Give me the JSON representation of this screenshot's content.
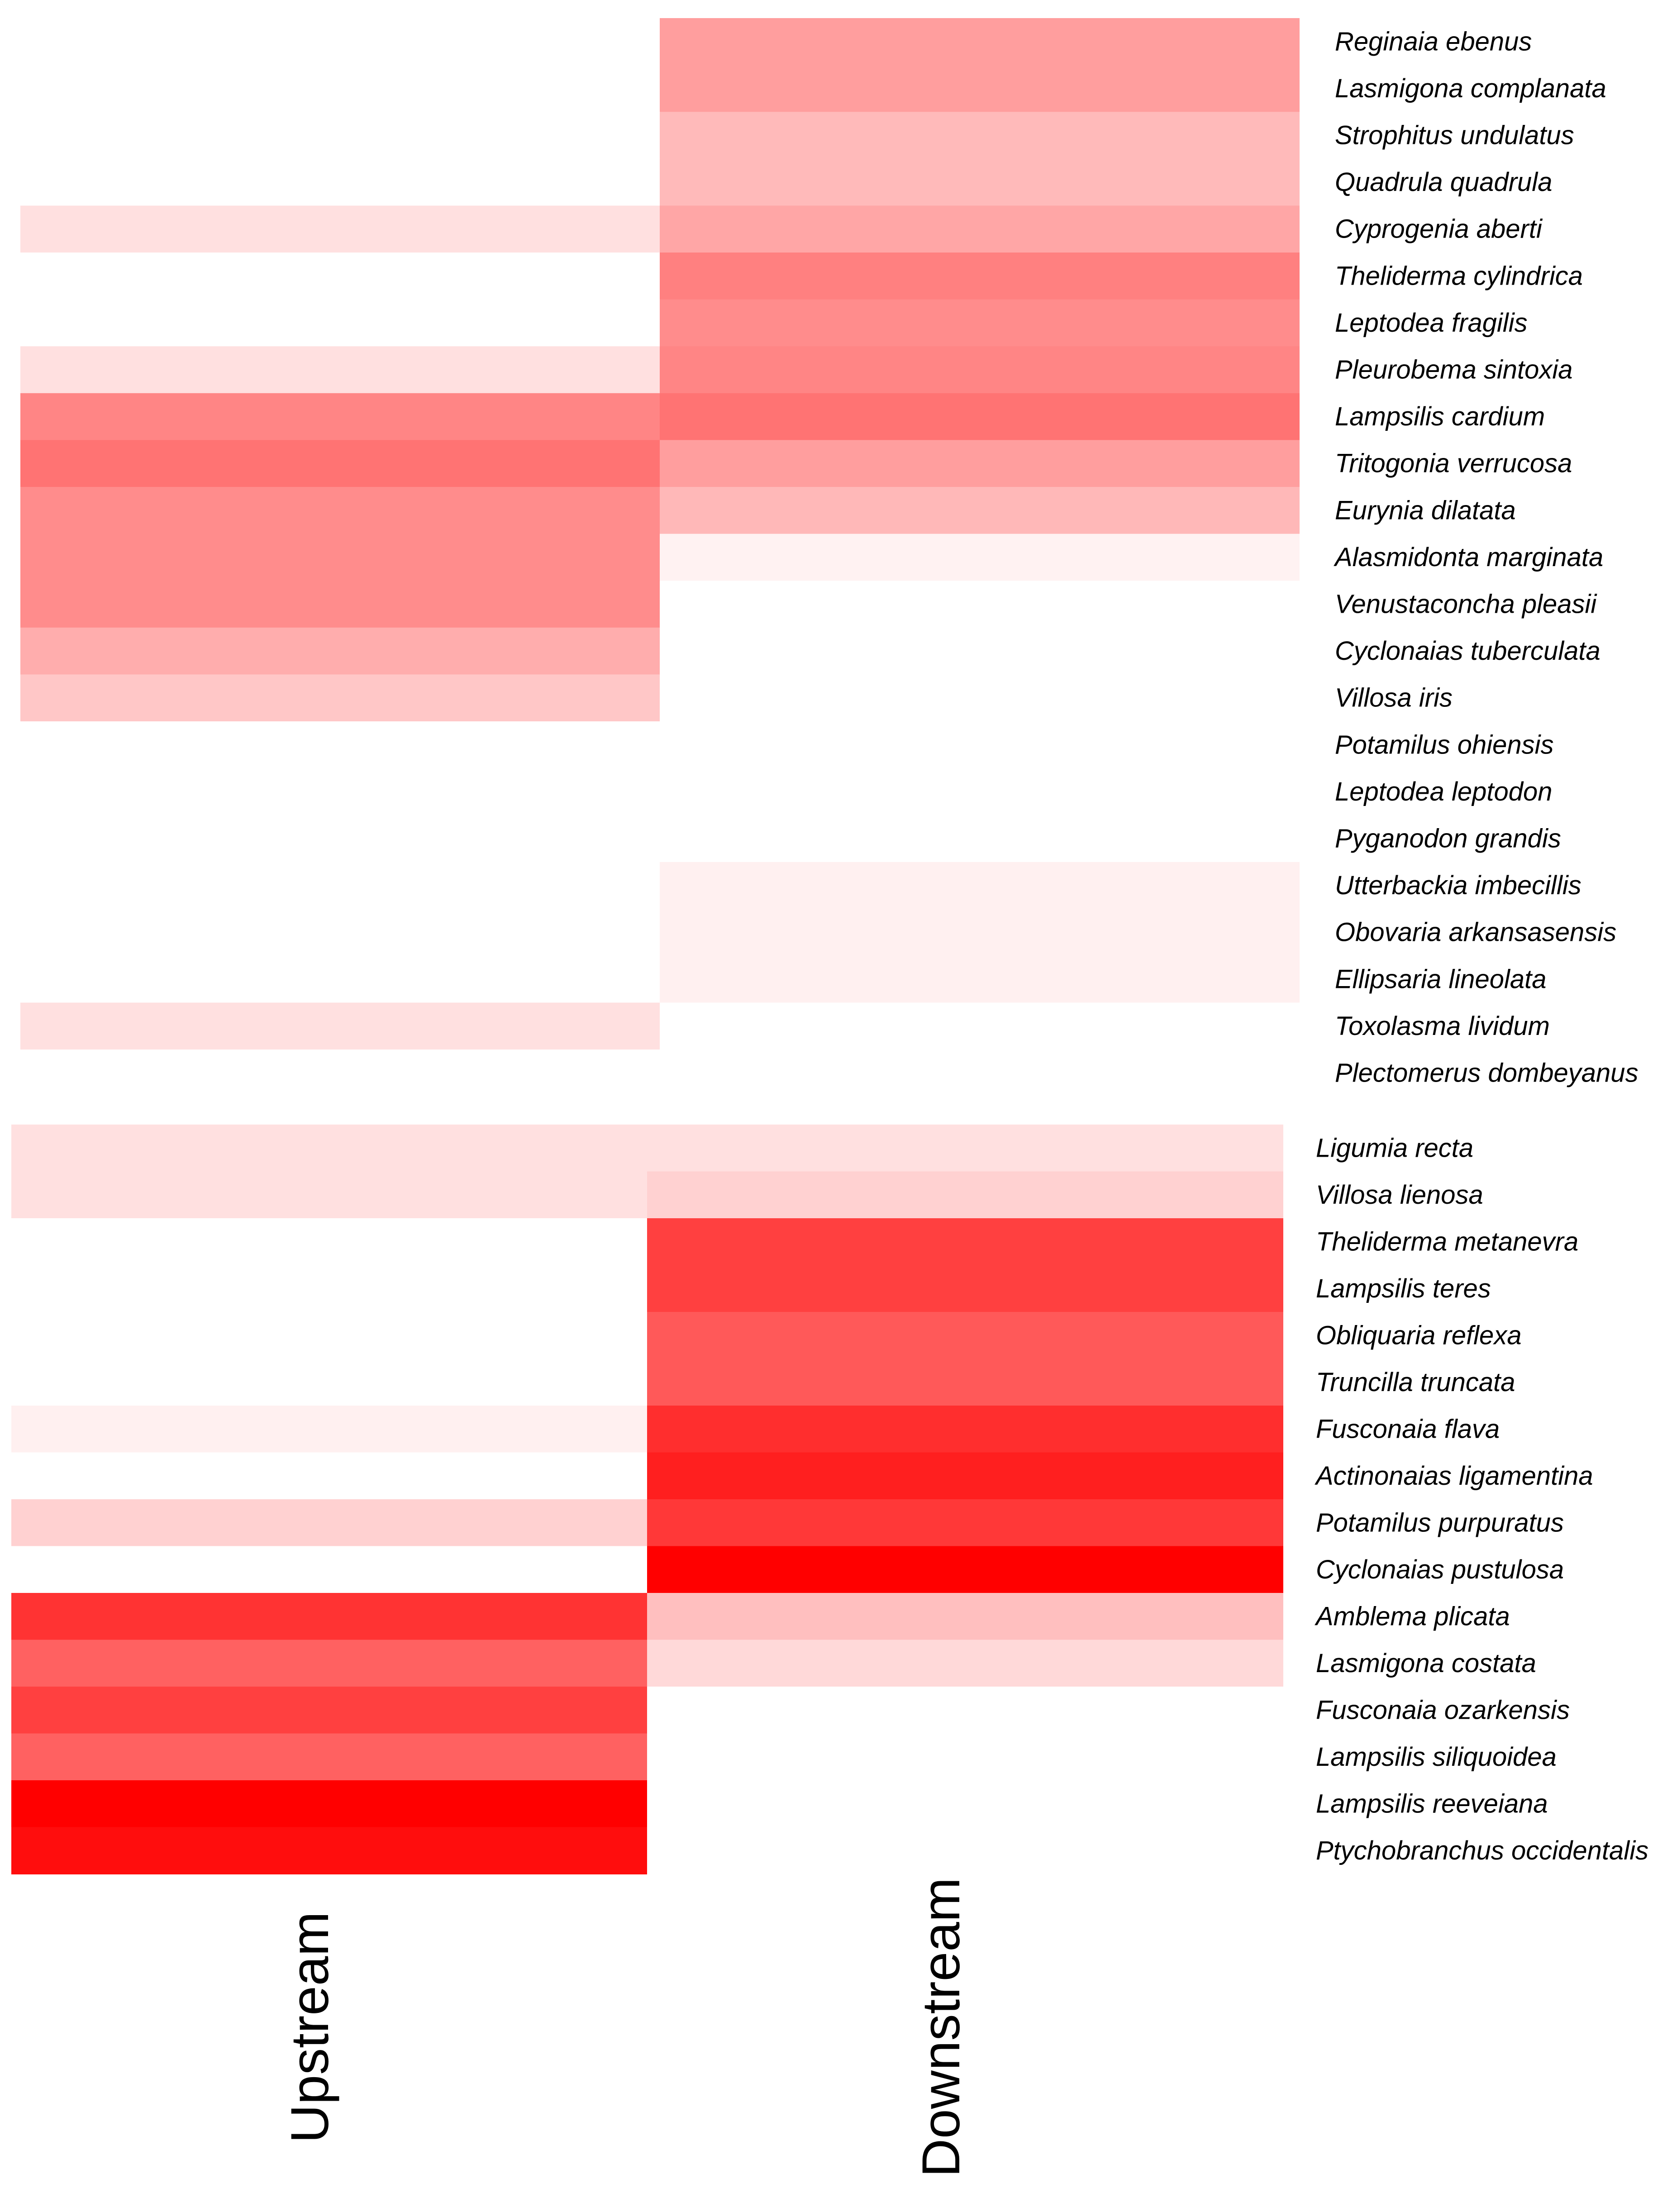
{
  "chart_data": [
    {
      "type": "heatmap",
      "title": "",
      "colormap": "white to red (0 = white, 1 = pure red)",
      "columns": [
        "Upstream",
        "Downstream"
      ],
      "rows": [
        "Reginaia ebenus",
        "Lasmigona complanata",
        "Strophitus undulatus",
        "Quadrula quadrula",
        "Cyprogenia aberti",
        "Theliderma cylindrica",
        "Leptodea fragilis",
        "Pleurobema sintoxia",
        "Lampsilis cardium",
        "Tritogonia verrucosa",
        "Eurynia dilatata",
        "Alasmidonta marginata",
        "Venustaconcha pleasii",
        "Cyclonaias tuberculata",
        "Villosa iris",
        "Potamilus ohiensis",
        "Leptodea leptodon",
        "Pyganodon grandis",
        "Utterbackia imbecillis",
        "Obovaria arkansasensis",
        "Ellipsaria lineolata",
        "Toxolasma lividum",
        "Plectomerus dombeyanus"
      ],
      "values": [
        [
          0.0,
          0.38
        ],
        [
          0.0,
          0.38
        ],
        [
          0.0,
          0.27
        ],
        [
          0.0,
          0.27
        ],
        [
          0.12,
          0.35
        ],
        [
          0.0,
          0.5
        ],
        [
          0.0,
          0.45
        ],
        [
          0.12,
          0.48
        ],
        [
          0.48,
          0.55
        ],
        [
          0.55,
          0.38
        ],
        [
          0.45,
          0.28
        ],
        [
          0.45,
          0.05
        ],
        [
          0.45,
          0.0
        ],
        [
          0.32,
          0.0
        ],
        [
          0.22,
          0.0
        ],
        [
          0.0,
          0.0
        ],
        [
          0.0,
          0.0
        ],
        [
          0.0,
          0.0
        ],
        [
          0.0,
          0.06
        ],
        [
          0.0,
          0.06
        ],
        [
          0.0,
          0.06
        ],
        [
          0.12,
          0.0
        ],
        [
          0.0,
          0.0
        ]
      ]
    },
    {
      "type": "heatmap",
      "title": "",
      "colormap": "white to red (0 = white, 1 = pure red)",
      "columns": [
        "Upstream",
        "Downstream"
      ],
      "rows": [
        "Ligumia recta",
        "Villosa lienosa",
        "Theliderma metanevra",
        "Lampsilis teres",
        "Obliquaria reflexa",
        "Truncilla truncata",
        "Fusconaia flava",
        "Actinonaias ligamentina",
        "Potamilus purpuratus",
        "Cyclonaias pustulosa",
        "Amblema plicata",
        "Lasmigona costata",
        "Fusconaia ozarkensis",
        "Lampsilis siliquoidea",
        "Lampsilis reeveiana",
        "Ptychobranchus occidentalis"
      ],
      "values": [
        [
          0.12,
          0.12
        ],
        [
          0.12,
          0.18
        ],
        [
          0.0,
          0.75
        ],
        [
          0.0,
          0.75
        ],
        [
          0.0,
          0.65
        ],
        [
          0.0,
          0.65
        ],
        [
          0.06,
          0.82
        ],
        [
          0.0,
          0.88
        ],
        [
          0.18,
          0.78
        ],
        [
          0.0,
          1.0
        ],
        [
          0.8,
          0.25
        ],
        [
          0.62,
          0.15
        ],
        [
          0.75,
          0.0
        ],
        [
          0.62,
          0.0
        ],
        [
          1.0,
          0.0
        ],
        [
          0.95,
          0.0
        ]
      ]
    }
  ],
  "column_labels": [
    "Upstream",
    "Downstream"
  ]
}
